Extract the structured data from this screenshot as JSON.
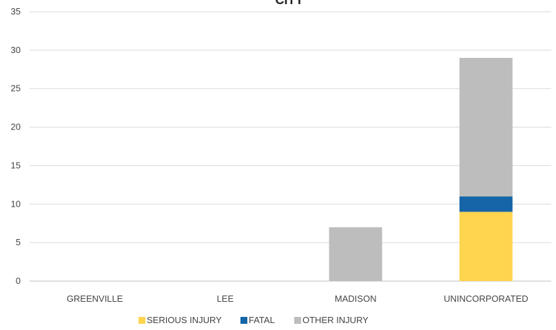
{
  "chart_data": {
    "type": "bar",
    "stacked": true,
    "title": "CITY",
    "xlabel": "",
    "ylabel": "",
    "categories": [
      "GREENVILLE",
      "LEE",
      "MADISON",
      "UNINCORPORATED"
    ],
    "ylim": [
      0,
      35
    ],
    "yticks": [
      0,
      5,
      10,
      15,
      20,
      25,
      30,
      35
    ],
    "grid": true,
    "legend_position": "bottom",
    "series": [
      {
        "name": "SERIOUS INJURY",
        "color": "#FFD54F",
        "values": [
          0,
          0,
          0,
          9
        ]
      },
      {
        "name": "FATAL",
        "color": "#1565A8",
        "values": [
          0,
          0,
          0,
          2
        ]
      },
      {
        "name": "OTHER INJURY",
        "color": "#BDBDBD",
        "values": [
          0,
          0,
          7,
          18
        ]
      }
    ]
  }
}
